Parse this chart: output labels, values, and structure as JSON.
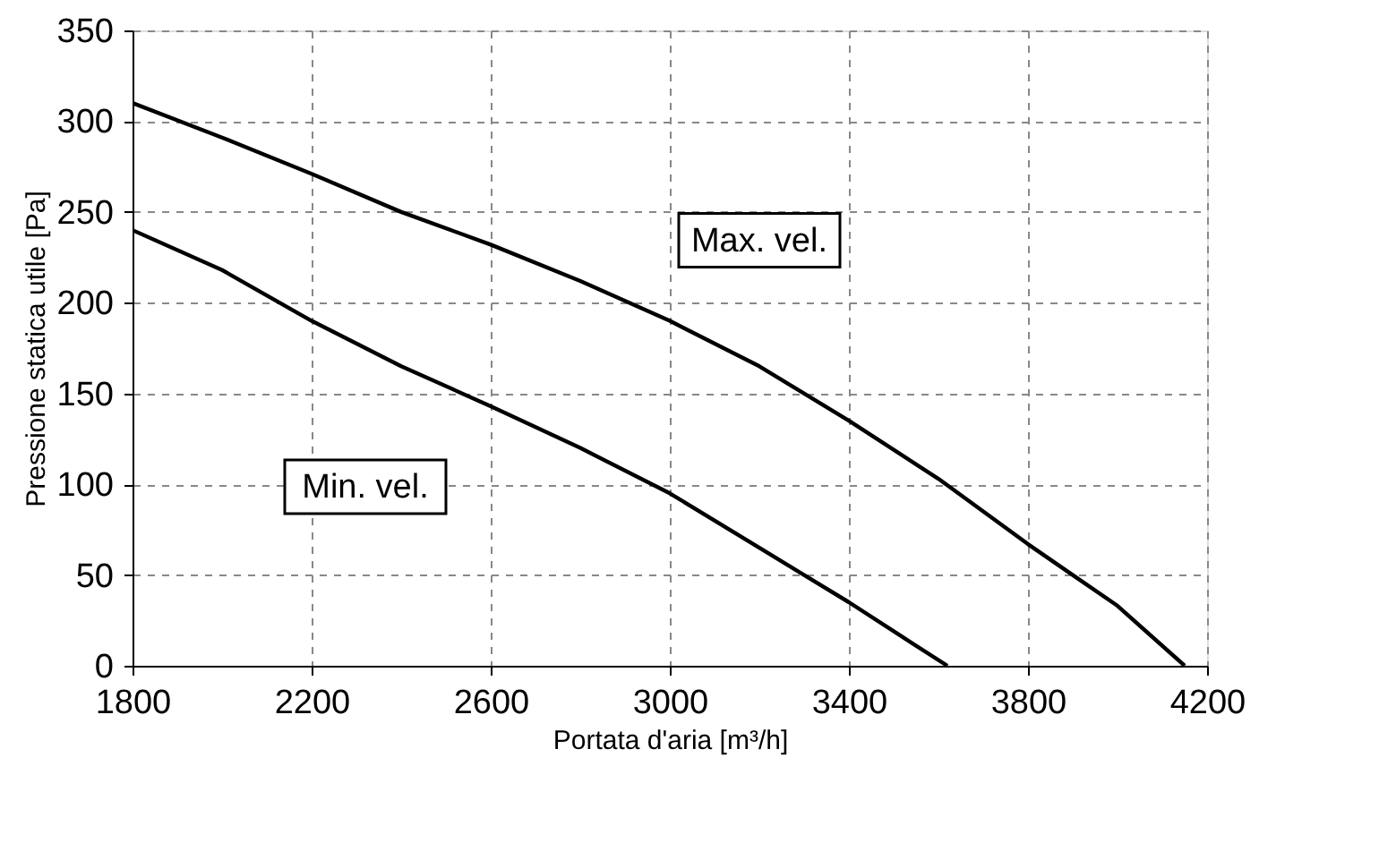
{
  "chart_data": {
    "type": "line",
    "xlabel": "Portata d'aria [m³/h]",
    "ylabel": "Pressione statica utile [Pa]",
    "xlim": [
      1800,
      4200
    ],
    "xticks": [
      1800,
      2200,
      2600,
      3000,
      3400,
      3800,
      4200
    ],
    "ylim": [
      0,
      350
    ],
    "yticks": [
      0,
      50,
      100,
      150,
      200,
      250,
      300,
      350
    ],
    "grid": true,
    "marker": "none",
    "line_style": "solid",
    "series": [
      {
        "name": "Max. vel.",
        "color": "#000000",
        "x": [
          1800,
          2000,
          2200,
          2400,
          2600,
          2800,
          3000,
          3200,
          3400,
          3600,
          3800,
          3900,
          4000,
          4150
        ],
        "values": [
          310,
          291,
          271,
          250,
          232,
          212,
          190,
          165,
          135,
          103,
          67,
          50,
          33,
          0
        ]
      },
      {
        "name": "Min. vel.",
        "color": "#000000",
        "x": [
          1800,
          2000,
          2200,
          2400,
          2600,
          2800,
          3000,
          3200,
          3300,
          3400,
          3500,
          3620
        ],
        "values": [
          240,
          218,
          190,
          165,
          143,
          120,
          95,
          65,
          50,
          35,
          19,
          0
        ]
      }
    ]
  }
}
